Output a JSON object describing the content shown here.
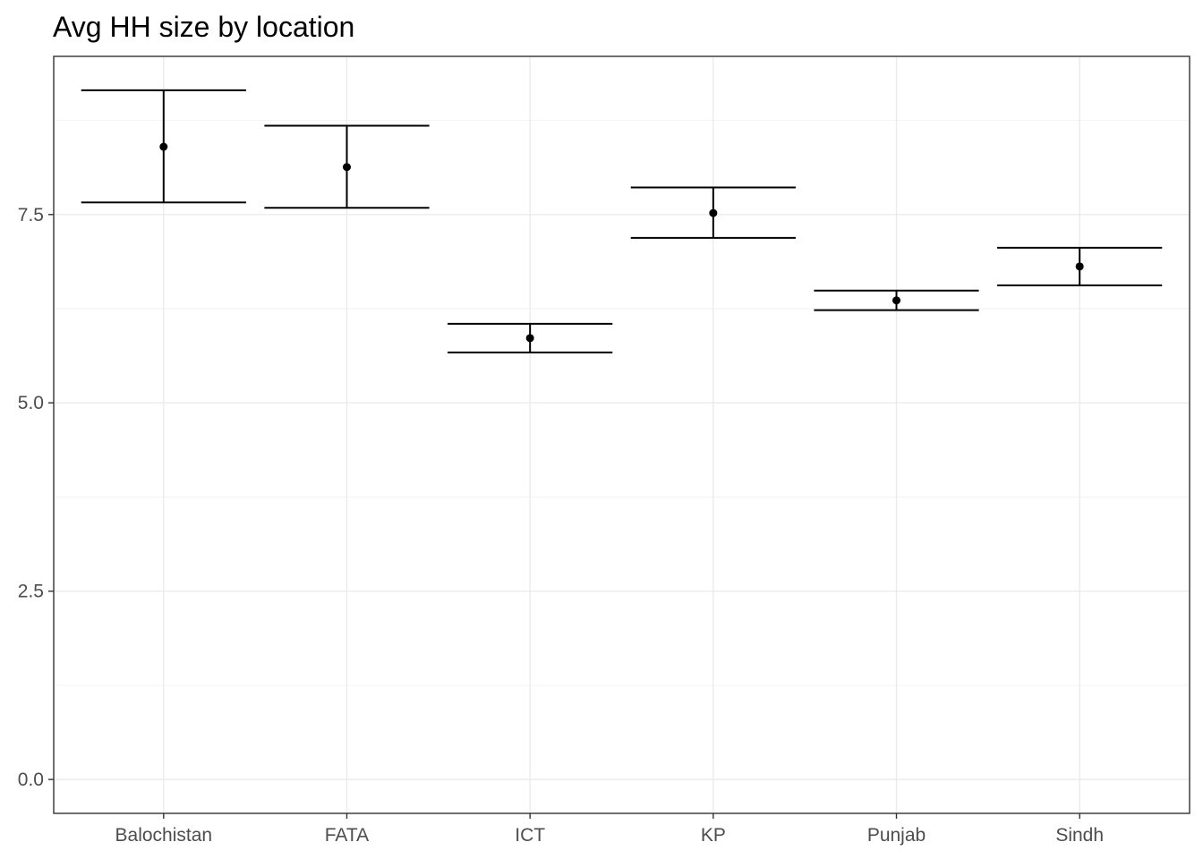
{
  "chart_data": {
    "type": "errorbar",
    "title": "Avg HH size by location",
    "subtitle": "",
    "xlabel": "",
    "ylabel": "",
    "categories": [
      "Balochistan",
      "FATA",
      "ICT",
      "KP",
      "Punjab",
      "Sindh"
    ],
    "series": [
      {
        "mean": [
          8.4,
          8.13,
          5.86,
          7.52,
          6.36,
          6.81
        ],
        "lower": [
          7.66,
          7.59,
          5.67,
          7.19,
          6.23,
          6.56
        ],
        "upper": [
          9.15,
          8.68,
          6.05,
          7.86,
          6.49,
          7.06
        ]
      }
    ],
    "ylim": [
      -0.45,
      9.6
    ],
    "yticks": [
      0.0,
      2.5,
      5.0,
      7.5
    ],
    "ytick_labels": [
      "0.0",
      "2.5",
      "5.0",
      "7.5"
    ],
    "grid": true,
    "legend": "none",
    "theme": "bw",
    "colors": {
      "points": "#000000",
      "errorbars": "#000000",
      "grid": "#ebebeb",
      "panel_border": "#333333",
      "tick_labels": "#4d4d4d"
    }
  }
}
